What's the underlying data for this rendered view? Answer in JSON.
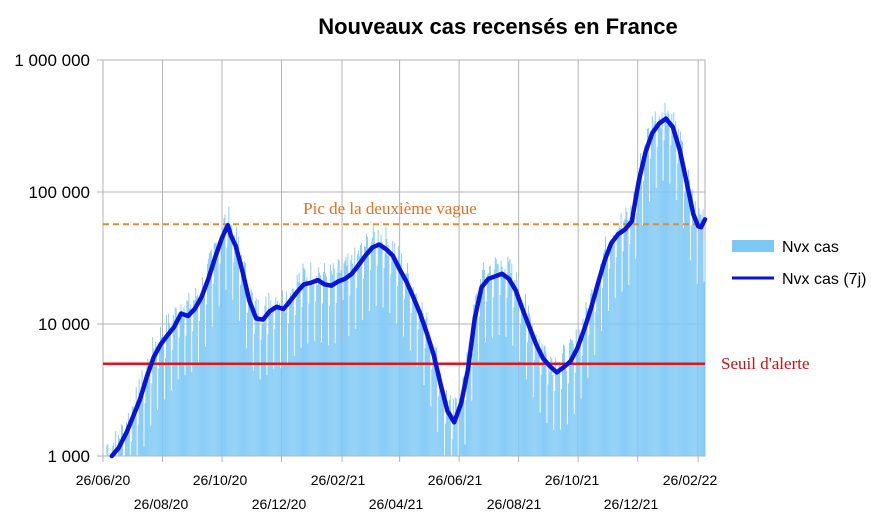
{
  "chart_data": {
    "type": "bar+line",
    "title": "Nouveaux cas recensés en France",
    "yscale": "log",
    "ylim": [
      1000,
      1000000
    ],
    "yticks": [
      1000,
      10000,
      100000,
      1000000
    ],
    "ytick_labels": [
      "1 000",
      "10 000",
      "100 000",
      "1 000 000"
    ],
    "x_start": "2020-06-26",
    "x_end": "2022-03-05",
    "xticks_upper": [
      "26/06/20",
      "26/10/20",
      "26/02/21",
      "26/06/21",
      "26/10/21",
      "26/02/22"
    ],
    "xticks_lower": [
      "26/08/20",
      "26/12/20",
      "26/04/21",
      "26/08/21",
      "26/12/21"
    ],
    "xtick_dates_upper": [
      "2020-06-26",
      "2020-10-26",
      "2021-02-26",
      "2021-06-26",
      "2021-10-26",
      "2022-02-26"
    ],
    "xtick_dates_lower": [
      "2020-08-26",
      "2020-12-26",
      "2021-04-26",
      "2021-08-26",
      "2021-12-26"
    ],
    "grid_dates": [
      "2020-06-26",
      "2020-08-26",
      "2020-10-26",
      "2020-12-26",
      "2021-02-26",
      "2021-04-26",
      "2021-06-26",
      "2021-08-26",
      "2021-10-26",
      "2021-12-26",
      "2022-02-26"
    ],
    "series": [
      {
        "name": "Nvx cas",
        "kind": "bar",
        "color": "#7ec8f5",
        "values_description": "daily new cases, fluctuating around the 7-day average"
      },
      {
        "name": "Nvx cas (7j)",
        "kind": "line",
        "color": "#0a14d8",
        "points": [
          [
            "2020-07-05",
            1000
          ],
          [
            "2020-07-12",
            1150
          ],
          [
            "2020-07-20",
            1500
          ],
          [
            "2020-07-27",
            2000
          ],
          [
            "2020-08-03",
            2700
          ],
          [
            "2020-08-10",
            4000
          ],
          [
            "2020-08-17",
            5600
          ],
          [
            "2020-08-24",
            7000
          ],
          [
            "2020-08-31",
            8200
          ],
          [
            "2020-09-07",
            9500
          ],
          [
            "2020-09-14",
            12000
          ],
          [
            "2020-09-21",
            11500
          ],
          [
            "2020-09-28",
            13000
          ],
          [
            "2020-10-05",
            16000
          ],
          [
            "2020-10-12",
            22000
          ],
          [
            "2020-10-19",
            32000
          ],
          [
            "2020-10-26",
            45000
          ],
          [
            "2020-11-01",
            56000
          ],
          [
            "2020-11-04",
            47000
          ],
          [
            "2020-11-09",
            39000
          ],
          [
            "2020-11-16",
            25000
          ],
          [
            "2020-11-23",
            15000
          ],
          [
            "2020-11-30",
            11000
          ],
          [
            "2020-12-07",
            10800
          ],
          [
            "2020-12-14",
            12500
          ],
          [
            "2020-12-21",
            13500
          ],
          [
            "2020-12-28",
            13000
          ],
          [
            "2021-01-04",
            15000
          ],
          [
            "2021-01-11",
            17500
          ],
          [
            "2021-01-18",
            20000
          ],
          [
            "2021-01-25",
            20500
          ],
          [
            "2021-02-01",
            21500
          ],
          [
            "2021-02-08",
            20000
          ],
          [
            "2021-02-15",
            19500
          ],
          [
            "2021-02-22",
            21000
          ],
          [
            "2021-03-01",
            22000
          ],
          [
            "2021-03-08",
            24000
          ],
          [
            "2021-03-15",
            28000
          ],
          [
            "2021-03-22",
            33000
          ],
          [
            "2021-03-29",
            38000
          ],
          [
            "2021-04-05",
            40000
          ],
          [
            "2021-04-12",
            37000
          ],
          [
            "2021-04-19",
            33000
          ],
          [
            "2021-04-26",
            26000
          ],
          [
            "2021-05-03",
            21000
          ],
          [
            "2021-05-10",
            16000
          ],
          [
            "2021-05-17",
            12000
          ],
          [
            "2021-05-24",
            8500
          ],
          [
            "2021-05-31",
            5800
          ],
          [
            "2021-06-07",
            3500
          ],
          [
            "2021-06-14",
            2200
          ],
          [
            "2021-06-21",
            1800
          ],
          [
            "2021-06-28",
            2500
          ],
          [
            "2021-07-05",
            4500
          ],
          [
            "2021-07-12",
            11000
          ],
          [
            "2021-07-19",
            19000
          ],
          [
            "2021-07-26",
            22000
          ],
          [
            "2021-08-02",
            23000
          ],
          [
            "2021-08-09",
            24000
          ],
          [
            "2021-08-16",
            22000
          ],
          [
            "2021-08-23",
            18000
          ],
          [
            "2021-08-30",
            13000
          ],
          [
            "2021-09-06",
            9500
          ],
          [
            "2021-09-13",
            7000
          ],
          [
            "2021-09-20",
            5500
          ],
          [
            "2021-09-27",
            4800
          ],
          [
            "2021-10-04",
            4300
          ],
          [
            "2021-10-11",
            4700
          ],
          [
            "2021-10-18",
            5200
          ],
          [
            "2021-10-25",
            6500
          ],
          [
            "2021-11-01",
            9000
          ],
          [
            "2021-11-08",
            13000
          ],
          [
            "2021-11-15",
            20000
          ],
          [
            "2021-11-22",
            30000
          ],
          [
            "2021-11-29",
            41000
          ],
          [
            "2021-12-06",
            48000
          ],
          [
            "2021-12-13",
            52000
          ],
          [
            "2021-12-20",
            60000
          ],
          [
            "2021-12-27",
            120000
          ],
          [
            "2022-01-03",
            200000
          ],
          [
            "2022-01-10",
            280000
          ],
          [
            "2022-01-17",
            330000
          ],
          [
            "2022-01-24",
            360000
          ],
          [
            "2022-01-31",
            310000
          ],
          [
            "2022-02-07",
            210000
          ],
          [
            "2022-02-14",
            120000
          ],
          [
            "2022-02-21",
            68000
          ],
          [
            "2022-02-26",
            55000
          ],
          [
            "2022-03-01",
            54000
          ],
          [
            "2022-03-05",
            62000
          ]
        ]
      }
    ],
    "reference_lines": [
      {
        "label": "Pic de la deuxième vague",
        "value": 57000,
        "color": "#e8892b",
        "style": "dashed"
      },
      {
        "label": "Seuil d'alerte",
        "value": 5000,
        "color": "#e0151b",
        "style": "solid"
      }
    ],
    "legend": [
      "Nvx cas",
      "Nvx cas (7j)"
    ],
    "legend_position": "right"
  }
}
